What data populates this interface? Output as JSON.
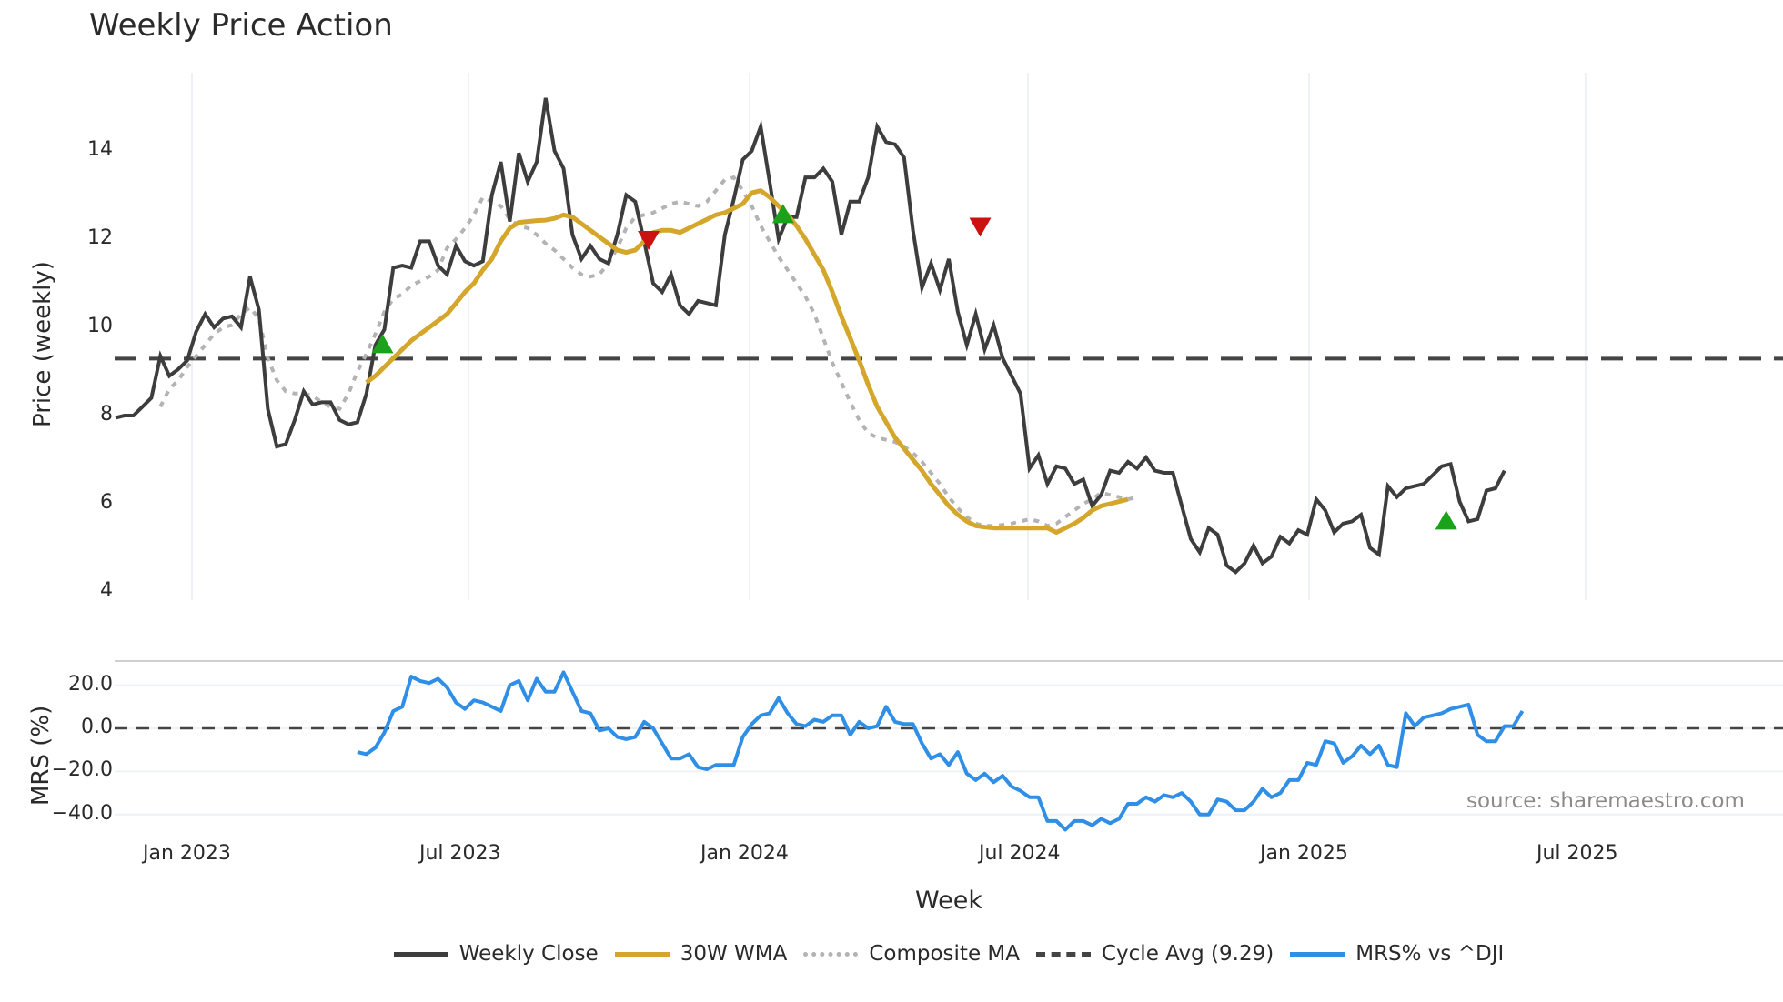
{
  "title": "Weekly Price Action",
  "source": "source: sharemaestro.com",
  "colors": {
    "weekly_close": "#3d3d3d",
    "wma30": "#d4a72c",
    "composite_ma": "#b3b3b3",
    "cycle_avg": "#444444",
    "mrs": "#2f8fe6",
    "buy_marker": "#1aa31a",
    "sell_marker": "#cc1111",
    "grid": "#eef1f5"
  },
  "legend": [
    {
      "key": "weekly_close",
      "label": "Weekly Close",
      "style": "solid"
    },
    {
      "key": "wma30",
      "label": "30W WMA",
      "style": "solid"
    },
    {
      "key": "composite_ma",
      "label": "Composite MA",
      "style": "dotted"
    },
    {
      "key": "cycle_avg",
      "label": "Cycle Avg (9.29)",
      "style": "dashed"
    },
    {
      "key": "mrs",
      "label": "MRS% vs ^DJI",
      "style": "solid"
    }
  ],
  "chart_data": [
    {
      "type": "line",
      "title": "Weekly Price Action",
      "xlabel": "Week",
      "ylabel": "Price (weekly)",
      "ylim": [
        3.8,
        15.6
      ],
      "yticks": [
        4,
        6,
        8,
        10,
        12,
        14
      ],
      "xticks": [
        "Jan 2023",
        "Jul 2023",
        "Jan 2024",
        "Jul 2024",
        "Jan 2025",
        "Jul 2025"
      ],
      "grid": true,
      "hline": {
        "label": "Cycle Avg (9.29)",
        "value": 9.29
      },
      "series": [
        {
          "name": "Weekly Close",
          "key": "weekly_close",
          "start_week": 0,
          "values": [
            7.95,
            8.0,
            8.0,
            8.2,
            8.4,
            9.35,
            8.9,
            9.05,
            9.25,
            9.9,
            10.3,
            10.0,
            10.2,
            10.25,
            10.0,
            11.15,
            10.4,
            8.15,
            7.3,
            7.35,
            7.9,
            8.55,
            8.25,
            8.3,
            8.3,
            7.9,
            7.8,
            7.85,
            8.5,
            9.6,
            9.95,
            11.35,
            11.4,
            11.35,
            11.95,
            11.95,
            11.4,
            11.2,
            11.85,
            11.5,
            11.4,
            11.5,
            13.0,
            13.75,
            12.4,
            13.95,
            13.3,
            13.75,
            15.2,
            14.0,
            13.6,
            12.1,
            11.55,
            11.85,
            11.55,
            11.45,
            12.1,
            13.0,
            12.85,
            11.95,
            11.0,
            10.8,
            11.2,
            10.5,
            10.3,
            10.6,
            10.55,
            10.5,
            12.1,
            12.9,
            13.8,
            14.0,
            14.55,
            13.3,
            12.0,
            12.5,
            12.5,
            13.4,
            13.4,
            13.6,
            13.3,
            12.1,
            12.85,
            12.85,
            13.4,
            14.55,
            14.2,
            14.15,
            13.85,
            12.2,
            10.9,
            11.45,
            10.85,
            11.55,
            10.35,
            9.6,
            10.3,
            9.5,
            10.05,
            9.3,
            8.9,
            8.5,
            6.8,
            7.1,
            6.45,
            6.85,
            6.8,
            6.45,
            6.55,
            5.95,
            6.2,
            6.75,
            6.7,
            6.95,
            6.8,
            7.05,
            6.75,
            6.7,
            6.7,
            5.95,
            5.2,
            4.9,
            5.45,
            5.3,
            4.6,
            4.45,
            4.65,
            5.05,
            4.65,
            4.8,
            5.25,
            5.1,
            5.4,
            5.3,
            6.1,
            5.85,
            5.35,
            5.55,
            5.6,
            5.75,
            5.0,
            4.85,
            6.4,
            6.15,
            6.35,
            6.4,
            6.45,
            6.65,
            6.85,
            6.9,
            6.05,
            5.6,
            5.65,
            6.3,
            6.35,
            6.75
          ]
        },
        {
          "name": "30W WMA",
          "key": "wma30",
          "start_week": 28,
          "values": [
            8.75,
            8.9,
            9.1,
            9.3,
            9.5,
            9.7,
            9.85,
            10.0,
            10.15,
            10.3,
            10.55,
            10.8,
            11.0,
            11.3,
            11.55,
            11.95,
            12.25,
            12.38,
            12.4,
            12.42,
            12.43,
            12.47,
            12.55,
            12.5,
            12.35,
            12.2,
            12.05,
            11.9,
            11.75,
            11.7,
            11.75,
            11.95,
            12.15,
            12.2,
            12.2,
            12.15,
            12.25,
            12.35,
            12.45,
            12.55,
            12.6,
            12.7,
            12.8,
            13.05,
            13.1,
            12.95,
            12.75,
            12.55,
            12.3,
            12.0,
            11.65,
            11.3,
            10.8,
            10.25,
            9.75,
            9.25,
            8.7,
            8.2,
            7.85,
            7.5,
            7.25,
            7.0,
            6.75,
            6.45,
            6.2,
            5.95,
            5.75,
            5.6,
            5.5,
            5.47,
            5.45,
            5.45,
            5.45,
            5.45,
            5.45,
            5.45,
            5.45,
            5.35,
            5.45,
            5.55,
            5.68,
            5.85,
            5.95,
            6.0,
            6.05,
            6.1
          ]
        },
        {
          "name": "Composite MA",
          "key": "composite_ma",
          "start_week": 5,
          "values": [
            8.2,
            8.6,
            8.8,
            9.1,
            9.35,
            9.6,
            9.85,
            10.0,
            10.05,
            10.3,
            10.45,
            10.2,
            9.3,
            8.8,
            8.55,
            8.5,
            8.5,
            8.45,
            8.3,
            8.2,
            8.15,
            8.5,
            9.0,
            9.4,
            9.85,
            10.35,
            10.65,
            10.75,
            10.95,
            11.05,
            11.15,
            11.3,
            11.8,
            12.0,
            12.25,
            12.55,
            12.95,
            12.85,
            12.75,
            12.45,
            12.3,
            12.25,
            12.1,
            11.9,
            11.75,
            11.55,
            11.35,
            11.2,
            11.15,
            11.2,
            11.45,
            11.8,
            12.25,
            12.5,
            12.55,
            12.6,
            12.7,
            12.8,
            12.85,
            12.8,
            12.75,
            12.85,
            13.1,
            13.35,
            13.4,
            13.1,
            12.75,
            12.3,
            11.95,
            11.6,
            11.3,
            11.0,
            10.7,
            10.3,
            9.75,
            9.2,
            8.75,
            8.3,
            7.9,
            7.6,
            7.5,
            7.45,
            7.4,
            7.3,
            7.15,
            6.95,
            6.7,
            6.45,
            6.15,
            5.9,
            5.7,
            5.55,
            5.5,
            5.5,
            5.52,
            5.55,
            5.6,
            5.65,
            5.6,
            5.5,
            5.55,
            5.7,
            5.85,
            6.0,
            6.1,
            6.25,
            6.2,
            6.15,
            6.1,
            6.15
          ]
        }
      ],
      "markers": [
        {
          "type": "buy",
          "week": 29.8,
          "value": 9.6
        },
        {
          "type": "sell",
          "week": 59.5,
          "value": 12.0
        },
        {
          "type": "buy",
          "week": 74.5,
          "value": 12.55
        },
        {
          "type": "sell",
          "week": 96.5,
          "value": 12.3
        },
        {
          "type": "buy",
          "week": 148.5,
          "value": 5.6
        }
      ]
    },
    {
      "type": "line",
      "title": "",
      "xlabel": "Week",
      "ylabel": "MRS (%)",
      "ylim": [
        -48,
        30
      ],
      "yticks": [
        20.0,
        0.0,
        -20.0,
        -40.0
      ],
      "ytick_labels": [
        "20.0",
        "0.0",
        "−20.0",
        "−40.0"
      ],
      "grid": true,
      "hline": {
        "value": 0.0
      },
      "series": [
        {
          "name": "MRS% vs ^DJI",
          "key": "mrs",
          "start_week": 27,
          "values": [
            -11,
            -12,
            -9,
            -2,
            8,
            10,
            24,
            22,
            21,
            23,
            19,
            12,
            9,
            13,
            12,
            10,
            8,
            20,
            22,
            13,
            23,
            17,
            17,
            26,
            17,
            8,
            7,
            -1,
            0,
            -4,
            -5,
            -4,
            3,
            0,
            -7,
            -14,
            -14,
            -12,
            -18,
            -19,
            -17,
            -17,
            -17,
            -4,
            2,
            6,
            7,
            14,
            7,
            2,
            1,
            4,
            3,
            6,
            6,
            -3,
            3,
            0,
            1,
            10,
            3,
            2,
            2,
            -7,
            -14,
            -12,
            -17,
            -11,
            -21,
            -24,
            -21,
            -25,
            -22,
            -27,
            -29,
            -32,
            -32,
            -43,
            -43,
            -47,
            -43,
            -43,
            -45,
            -42,
            -44,
            -42,
            -35,
            -35,
            -32,
            -34,
            -31,
            -32,
            -30,
            -34,
            -40,
            -40,
            -33,
            -34,
            -38,
            -38,
            -34,
            -28,
            -32,
            -30,
            -24,
            -24,
            -16,
            -17,
            -6,
            -7,
            -16,
            -13,
            -8,
            -12,
            -8,
            -17,
            -18,
            7,
            1,
            5,
            6,
            7,
            9,
            10,
            11,
            -3,
            -6,
            -6,
            1,
            1,
            8
          ]
        }
      ]
    }
  ],
  "axes": {
    "price_ylabel": "Price (weekly)",
    "mrs_ylabel": "MRS (%)",
    "xlabel": "Week"
  }
}
